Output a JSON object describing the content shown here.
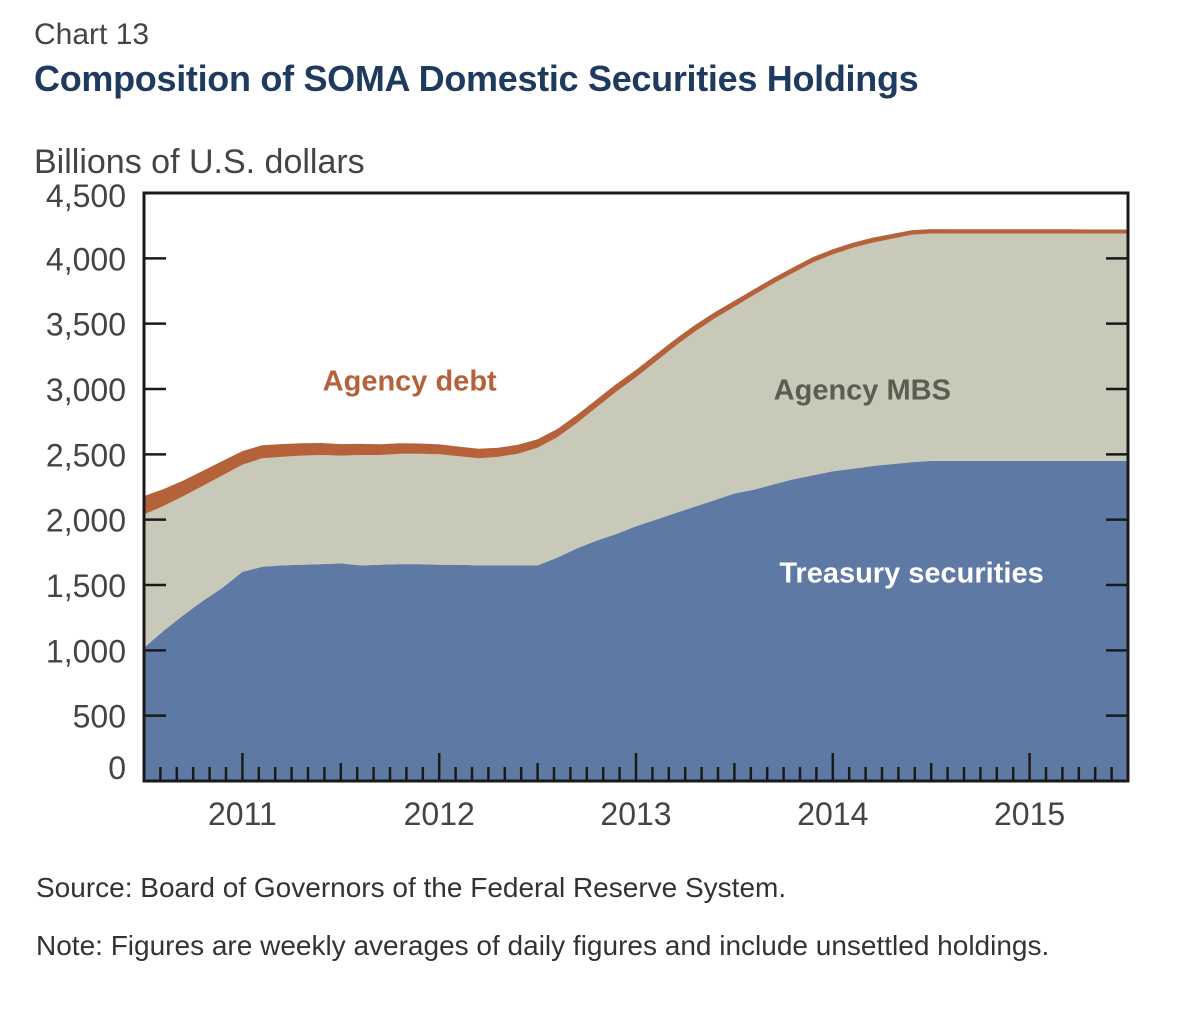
{
  "header": {
    "chart_number": "Chart 13",
    "title": "Composition of SOMA Domestic Securities Holdings"
  },
  "colors": {
    "treasury": "#5f79a5",
    "mbs": "#c8c9b9",
    "agency_debt": "#b5623b",
    "frame": "#1a1a1a"
  },
  "chart_data": {
    "type": "area",
    "stacked": true,
    "title": "Composition of SOMA Domestic Securities Holdings",
    "ylabel": "Billions of U.S. dollars",
    "xlabel": "",
    "ylim": [
      0,
      4500
    ],
    "xlim": [
      2010.5,
      2015.5
    ],
    "yticks": [
      0,
      500,
      1000,
      1500,
      2000,
      2500,
      3000,
      3500,
      4000,
      4500
    ],
    "ytick_labels": [
      "0",
      "500",
      "1,000",
      "1,500",
      "2,000",
      "2,500",
      "3,000",
      "3,500",
      "4,000",
      "4,500"
    ],
    "xtick_labels": [
      {
        "x": 2011,
        "label": "2011"
      },
      {
        "x": 2012,
        "label": "2012"
      },
      {
        "x": 2013,
        "label": "2013"
      },
      {
        "x": 2014,
        "label": "2014"
      },
      {
        "x": 2015,
        "label": "2015"
      }
    ],
    "x": [
      2010.5,
      2010.6,
      2010.7,
      2010.8,
      2010.9,
      2011.0,
      2011.1,
      2011.2,
      2011.3,
      2011.4,
      2011.5,
      2011.6,
      2011.7,
      2011.8,
      2011.9,
      2012.0,
      2012.1,
      2012.2,
      2012.3,
      2012.4,
      2012.5,
      2012.6,
      2012.7,
      2012.8,
      2012.9,
      2013.0,
      2013.1,
      2013.2,
      2013.3,
      2013.4,
      2013.5,
      2013.6,
      2013.7,
      2013.8,
      2013.9,
      2014.0,
      2014.1,
      2014.2,
      2014.3,
      2014.4,
      2014.5,
      2014.6,
      2014.7,
      2014.8,
      2014.9,
      2015.0,
      2015.1,
      2015.2,
      2015.3,
      2015.4,
      2015.5
    ],
    "series": [
      {
        "name": "Treasury securities",
        "values": [
          1020,
          1150,
          1270,
          1380,
          1480,
          1600,
          1640,
          1650,
          1655,
          1660,
          1665,
          1650,
          1655,
          1660,
          1660,
          1655,
          1655,
          1650,
          1650,
          1650,
          1650,
          1710,
          1780,
          1840,
          1890,
          1950,
          2000,
          2050,
          2100,
          2150,
          2200,
          2230,
          2270,
          2310,
          2340,
          2370,
          2390,
          2410,
          2425,
          2440,
          2450,
          2450,
          2450,
          2450,
          2450,
          2450,
          2450,
          2450,
          2450,
          2450,
          2450
        ]
      },
      {
        "name": "Agency MBS",
        "values": [
          1020,
          955,
          910,
          880,
          860,
          820,
          830,
          830,
          835,
          835,
          825,
          845,
          840,
          845,
          845,
          845,
          830,
          820,
          830,
          855,
          900,
          920,
          960,
          1020,
          1090,
          1140,
          1210,
          1280,
          1340,
          1390,
          1430,
          1490,
          1540,
          1580,
          1630,
          1660,
          1690,
          1710,
          1725,
          1740,
          1740,
          1740,
          1740,
          1740,
          1740,
          1740,
          1740,
          1740,
          1740,
          1740,
          1740
        ]
      },
      {
        "name": "Agency debt",
        "values": [
          140,
          130,
          120,
          115,
          110,
          105,
          100,
          98,
          95,
          92,
          88,
          85,
          82,
          80,
          78,
          76,
          74,
          72,
          70,
          68,
          66,
          64,
          62,
          60,
          58,
          56,
          54,
          52,
          50,
          48,
          46,
          44,
          42,
          41,
          40,
          39,
          38,
          37,
          36,
          35,
          34,
          33,
          33,
          33,
          32,
          32,
          32,
          32,
          31,
          31,
          31
        ]
      }
    ],
    "annotations": [
      {
        "text": "Agency debt",
        "series": "Agency debt",
        "x": 2011.85,
        "y": 2990
      },
      {
        "text": "Agency MBS",
        "series": "Agency MBS",
        "x": 2014.15,
        "y": 2920
      },
      {
        "text": "Treasury securities",
        "series": "Treasury securities",
        "x": 2014.4,
        "y": 1520
      }
    ]
  },
  "footer": {
    "source": "Source: Board of Governors of the Federal Reserve System.",
    "note": "Note: Figures are weekly averages of daily figures and include unsettled holdings."
  }
}
